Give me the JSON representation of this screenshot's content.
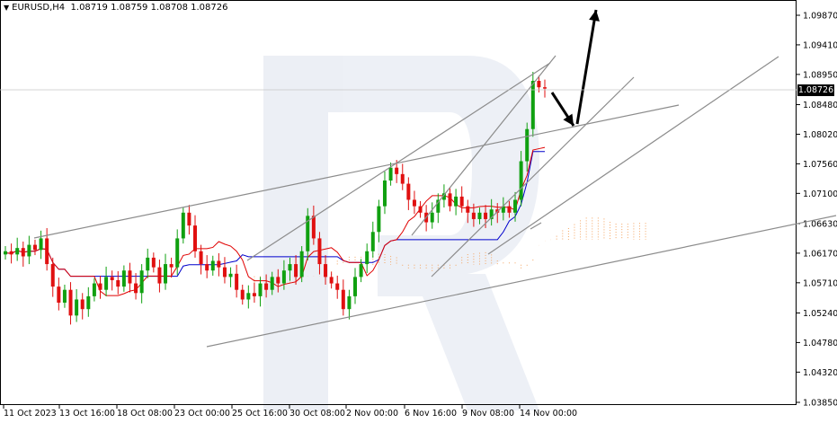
{
  "header": {
    "symbol": "EURUSD,H4",
    "ohlc": "1.08719 1.08759 1.08708 1.08726"
  },
  "price_tag": "1.08726",
  "chart_data": {
    "type": "candlestick",
    "symbol": "EURUSD",
    "timeframe": "H4",
    "yticks": [
      "1.09870",
      "1.09410",
      "1.08950",
      "1.08480",
      "1.08020",
      "1.07560",
      "1.07100",
      "1.06630",
      "1.06170",
      "1.05710",
      "1.05240",
      "1.04780",
      "1.04320",
      "1.03850"
    ],
    "ylim": [
      1.0385,
      1.0987
    ],
    "xticks": [
      "11 Oct 2023",
      "13 Oct 16:00",
      "18 Oct 08:00",
      "23 Oct 00:00",
      "25 Oct 16:00",
      "30 Oct 08:00",
      "2 Nov 00:00",
      "6 Nov 16:00",
      "9 Nov 08:00",
      "14 Nov 00:00"
    ],
    "last_price": 1.08726,
    "colors": {
      "bull": "#10a010",
      "bear": "#e01010",
      "kijun": "#0000cc",
      "tenkan": "#e00000",
      "cloud": "#f4a460",
      "lines": "#8c8c8c",
      "arrow": "#000000"
    },
    "closes": [
      1.062,
      1.0615,
      1.0625,
      1.0612,
      1.063,
      1.0622,
      1.064,
      1.06,
      1.0565,
      1.054,
      1.056,
      1.052,
      1.0545,
      1.053,
      1.055,
      1.057,
      1.056,
      1.058,
      1.0575,
      1.0565,
      1.059,
      1.057,
      1.0555,
      1.059,
      1.061,
      1.0595,
      1.057,
      1.06,
      1.0595,
      1.064,
      1.068,
      1.066,
      1.062,
      1.06,
      1.059,
      1.0605,
      1.0595,
      1.058,
      1.0585,
      1.056,
      1.0545,
      1.0555,
      1.055,
      1.057,
      1.056,
      1.058,
      1.057,
      1.059,
      1.06,
      1.058,
      1.062,
      1.0675,
      1.064,
      1.06,
      1.058,
      1.057,
      1.056,
      1.053,
      1.055,
      1.058,
      1.06,
      1.062,
      1.065,
      1.069,
      1.073,
      1.075,
      1.074,
      1.0725,
      1.07,
      1.069,
      1.068,
      1.0665,
      1.068,
      1.07,
      1.071,
      1.069,
      1.0705,
      1.069,
      1.068,
      1.067,
      1.068,
      1.067,
      1.0685,
      1.068,
      1.069,
      1.068,
      1.07,
      1.076,
      1.081,
      1.0885,
      1.0875,
      1.0873
    ]
  }
}
